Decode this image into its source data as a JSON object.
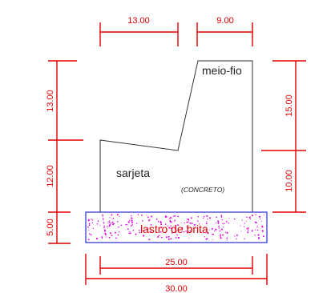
{
  "labels": {
    "meio_fio": "meio-fio",
    "sarjeta": "sarjeta",
    "concreto": "(CONCRETO)",
    "lastro": "lastro de brita"
  },
  "dimensions": {
    "top_left": "13.00",
    "top_right": "9.00",
    "left_upper": "13.00",
    "left_middle": "12.00",
    "left_lower": "5.00",
    "right_upper": "15.00",
    "right_lower": "10.00",
    "bottom_inner": "25.00",
    "bottom_outer": "30.00"
  },
  "colors": {
    "dimension": "#e00000",
    "outline": "#333333",
    "ballast_border": "#2a2ad0",
    "ballast_dots": "#e000e0"
  }
}
